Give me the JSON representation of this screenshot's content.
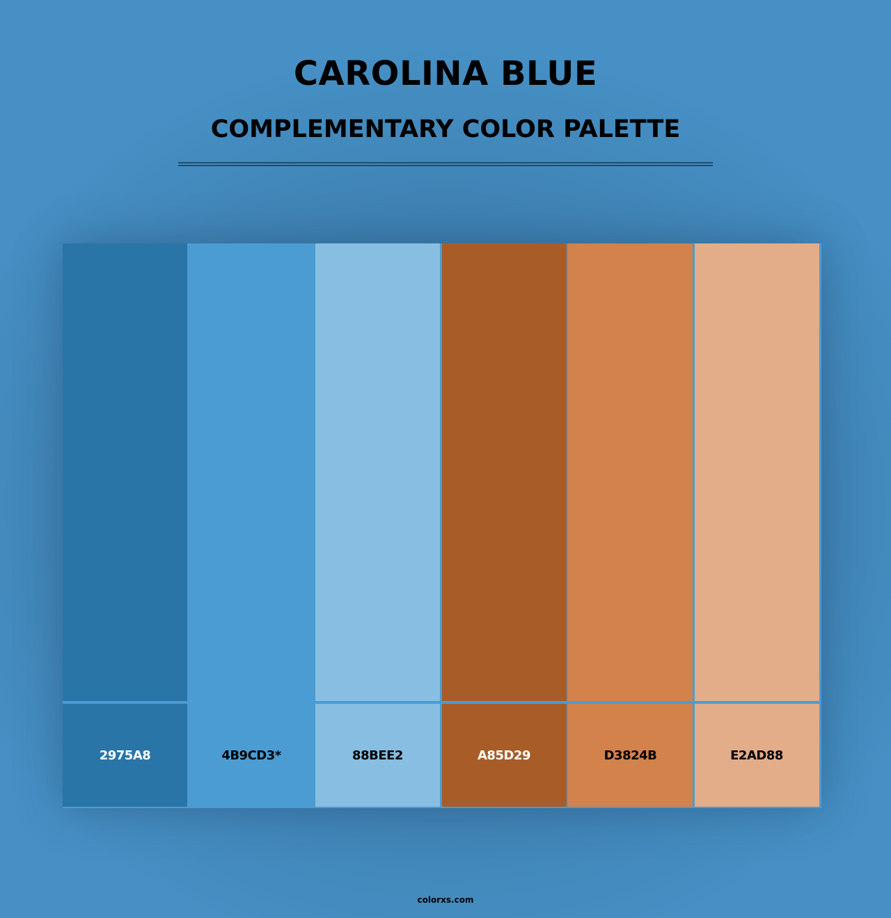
{
  "title": "CAROLINA BLUE",
  "subtitle": "COMPLEMENTARY COLOR PALETTE",
  "swatches": [
    {
      "hex": "2975A8",
      "label": "2975A8",
      "color": "#2975a8",
      "text_color": "#ffffff"
    },
    {
      "hex": "4B9CD3",
      "label": "4B9CD3*",
      "color": "#4b9cd3",
      "text_color": "#000000"
    },
    {
      "hex": "88BEE2",
      "label": "88BEE2",
      "color": "#88bee2",
      "text_color": "#000000"
    },
    {
      "hex": "A85D29",
      "label": "A85D29",
      "color": "#a85d29",
      "text_color": "#ffffff"
    },
    {
      "hex": "D3824B",
      "label": "D3824B",
      "color": "#d3824b",
      "text_color": "#000000"
    },
    {
      "hex": "E2AD88",
      "label": "E2AD88",
      "color": "#e2ad88",
      "text_color": "#000000"
    }
  ],
  "footer": "colorxs.com"
}
